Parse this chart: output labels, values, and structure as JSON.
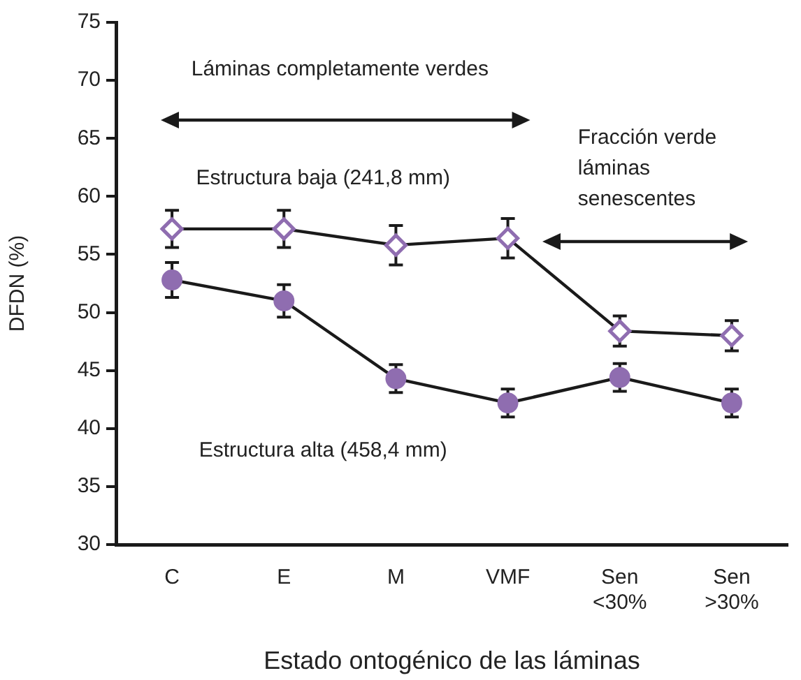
{
  "chart_data": {
    "type": "line",
    "xlabel": "Estado ontogénico de las láminas",
    "ylabel": "DFDN (%)",
    "categories": [
      "C",
      "E",
      "M",
      "VMF",
      "Sen <30%",
      "Sen >30%"
    ],
    "series": [
      {
        "color": "#8f6db0",
        "marker": "diamond",
        "values": [
          57.2,
          57.2,
          55.8,
          56.4,
          48.4,
          48.0
        ],
        "errors": [
          1.6,
          1.6,
          1.7,
          1.7,
          1.3,
          1.3
        ]
      },
      {
        "color": "#8f6db0",
        "marker": "circle",
        "values": [
          52.8,
          51.0,
          44.3,
          42.2,
          44.4,
          42.2
        ],
        "errors": [
          1.5,
          1.4,
          1.2,
          1.2,
          1.2,
          1.2
        ]
      }
    ],
    "ylim": [
      30,
      75
    ],
    "yticks": [
      30,
      35,
      40,
      45,
      50,
      55,
      60,
      65,
      70,
      75
    ],
    "grid": false,
    "legend": false,
    "line_style": "solid",
    "annotations": [
      "Láminas completamente verdes",
      "Fracción verde láminas senescentes",
      "Estructura baja (241,8 mm)",
      "Estructura alta (458,4 mm)"
    ]
  }
}
